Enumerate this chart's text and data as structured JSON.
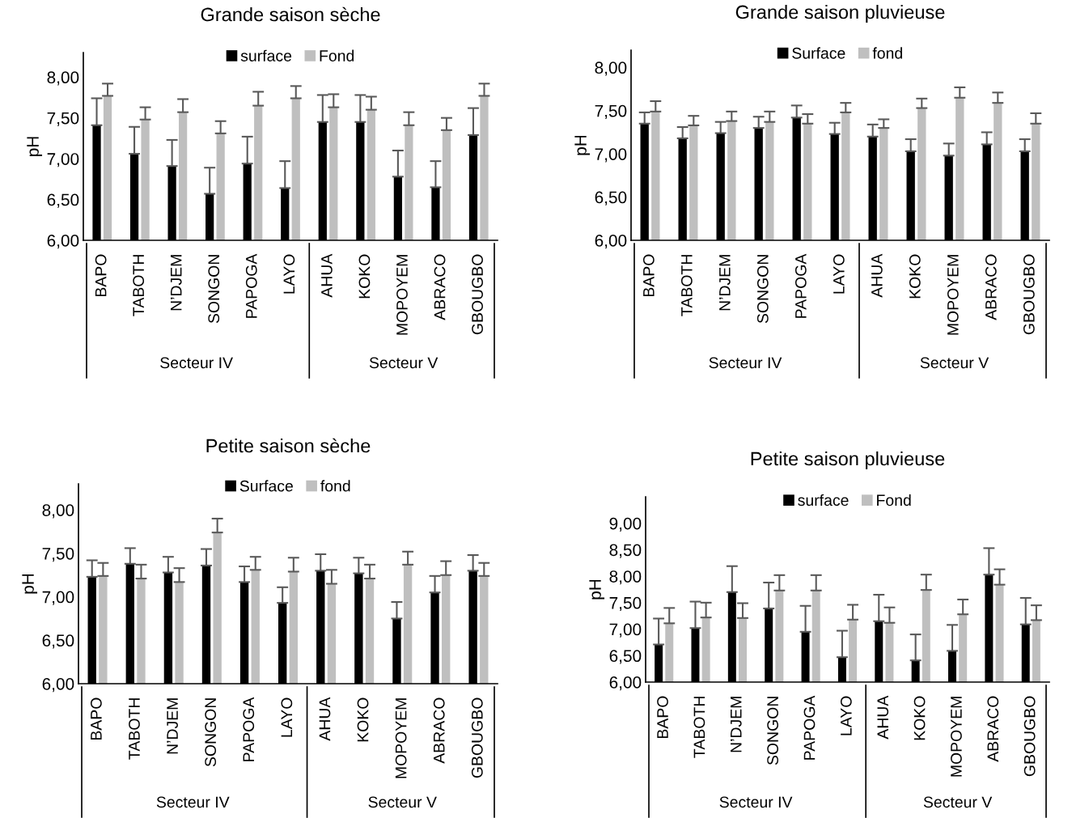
{
  "chart_data": [
    {
      "type": "bar",
      "title": "Grande saison sèche",
      "ylabel": "pH",
      "categories": [
        "BAPO",
        "TABOTH",
        "N’DJEM",
        "SONGON",
        "PAPOGA",
        "LAYO",
        "AHUA",
        "KOKO",
        "MOPOYEM",
        "ABRACO",
        "GBOUGBO"
      ],
      "series": [
        {
          "name": "surface",
          "color": "#000000",
          "values": [
            7.41,
            7.06,
            6.91,
            6.57,
            6.94,
            6.64,
            7.45,
            7.45,
            6.78,
            6.65,
            7.29
          ],
          "errors": [
            [
              7.41,
              7.74
            ],
            [
              7.06,
              7.39
            ],
            [
              6.91,
              7.23
            ],
            [
              6.57,
              6.89
            ],
            [
              6.94,
              7.27
            ],
            [
              6.64,
              6.97
            ],
            [
              7.45,
              7.78
            ],
            [
              7.45,
              7.78
            ],
            [
              6.78,
              7.1
            ],
            [
              6.65,
              6.97
            ],
            [
              7.29,
              7.62
            ]
          ]
        },
        {
          "name": "Fond",
          "color": "#bfbfbf",
          "values": [
            7.77,
            7.48,
            7.57,
            7.31,
            7.65,
            7.74,
            7.63,
            7.6,
            7.41,
            7.35,
            7.77
          ],
          "errors": [
            [
              7.77,
              7.92
            ],
            [
              7.48,
              7.63
            ],
            [
              7.57,
              7.73
            ],
            [
              7.31,
              7.46
            ],
            [
              7.65,
              7.82
            ],
            [
              7.74,
              7.89
            ],
            [
              7.63,
              7.79
            ],
            [
              7.6,
              7.76
            ],
            [
              7.41,
              7.57
            ],
            [
              7.35,
              7.5
            ],
            [
              7.77,
              7.92
            ]
          ]
        }
      ],
      "ylim": [
        6,
        8.3
      ],
      "yticks": [
        {
          "value": 6,
          "label": "6,00"
        },
        {
          "value": 6.5,
          "label": "6,50"
        },
        {
          "value": 7,
          "label": "7,00"
        },
        {
          "value": 7.5,
          "label": "7,50"
        },
        {
          "value": 8,
          "label": "8,00"
        }
      ],
      "legend": "top",
      "grid": false,
      "annotations": [
        "Secteur IV",
        "Secteur V"
      ]
    },
    {
      "type": "bar",
      "title": "Grande saison pluvieuse",
      "ylabel": "pH",
      "categories": [
        "BAPO",
        "TABOTH",
        "N’DJEM",
        "SONGON",
        "PAPOGA",
        "LAYO",
        "AHUA",
        "KOKO",
        "MOPOYEM",
        "ABRACO",
        "GBOUGBO"
      ],
      "series": [
        {
          "name": "Surface",
          "color": "#000000",
          "values": [
            7.35,
            7.18,
            7.24,
            7.3,
            7.42,
            7.23,
            7.2,
            7.03,
            6.98,
            7.11,
            7.03
          ],
          "errors": [
            [
              7.35,
              7.48
            ],
            [
              7.18,
              7.31
            ],
            [
              7.24,
              7.37
            ],
            [
              7.3,
              7.43
            ],
            [
              7.42,
              7.56
            ],
            [
              7.23,
              7.36
            ],
            [
              7.2,
              7.34
            ],
            [
              7.03,
              7.17
            ],
            [
              6.98,
              7.12
            ],
            [
              7.11,
              7.25
            ],
            [
              7.03,
              7.17
            ]
          ]
        },
        {
          "name": "fond",
          "color": "#bfbfbf",
          "values": [
            7.49,
            7.33,
            7.38,
            7.37,
            7.35,
            7.48,
            7.3,
            7.53,
            7.65,
            7.59,
            7.35
          ],
          "errors": [
            [
              7.49,
              7.61
            ],
            [
              7.33,
              7.44
            ],
            [
              7.38,
              7.49
            ],
            [
              7.37,
              7.49
            ],
            [
              7.35,
              7.46
            ],
            [
              7.48,
              7.59
            ],
            [
              7.3,
              7.4
            ],
            [
              7.53,
              7.64
            ],
            [
              7.65,
              7.77
            ],
            [
              7.59,
              7.71
            ],
            [
              7.35,
              7.47
            ]
          ]
        }
      ],
      "ylim": [
        6,
        8.2
      ],
      "yticks": [
        {
          "value": 6,
          "label": "6,00"
        },
        {
          "value": 6.5,
          "label": "6,50"
        },
        {
          "value": 7,
          "label": "7,00"
        },
        {
          "value": 7.5,
          "label": "7,50"
        },
        {
          "value": 8,
          "label": "8,00"
        }
      ],
      "legend": "top",
      "grid": false,
      "annotations": [
        "Secteur IV",
        "Secteur V"
      ]
    },
    {
      "type": "bar",
      "title": "Petite saison sèche",
      "ylabel": "pH",
      "categories": [
        "BAPO",
        "TABOTH",
        "N’DJEM",
        "SONGON",
        "PAPOGA",
        "LAYO",
        "AHUA",
        "KOKO",
        "MOPOYEM",
        "ABRACO",
        "GBOUGBO"
      ],
      "series": [
        {
          "name": "Surface",
          "color": "#000000",
          "values": [
            7.23,
            7.38,
            7.28,
            7.36,
            7.17,
            6.93,
            7.3,
            7.27,
            6.75,
            7.05,
            7.3
          ],
          "errors": [
            [
              7.23,
              7.42
            ],
            [
              7.38,
              7.56
            ],
            [
              7.28,
              7.46
            ],
            [
              7.36,
              7.55
            ],
            [
              7.17,
              7.35
            ],
            [
              6.93,
              7.11
            ],
            [
              7.3,
              7.49
            ],
            [
              7.27,
              7.45
            ],
            [
              6.75,
              6.94
            ],
            [
              7.05,
              7.24
            ],
            [
              7.3,
              7.48
            ]
          ]
        },
        {
          "name": "fond",
          "color": "#bfbfbf",
          "values": [
            7.24,
            7.21,
            7.17,
            7.74,
            7.31,
            7.29,
            7.15,
            7.21,
            7.37,
            7.25,
            7.24
          ],
          "errors": [
            [
              7.24,
              7.39
            ],
            [
              7.21,
              7.37
            ],
            [
              7.17,
              7.33
            ],
            [
              7.74,
              7.9
            ],
            [
              7.31,
              7.46
            ],
            [
              7.29,
              7.45
            ],
            [
              7.15,
              7.31
            ],
            [
              7.21,
              7.37
            ],
            [
              7.37,
              7.52
            ],
            [
              7.25,
              7.41
            ],
            [
              7.24,
              7.39
            ]
          ]
        }
      ],
      "ylim": [
        6,
        8.3
      ],
      "yticks": [
        {
          "value": 6,
          "label": "6,00"
        },
        {
          "value": 6.5,
          "label": "6,50"
        },
        {
          "value": 7,
          "label": "7,00"
        },
        {
          "value": 7.5,
          "label": "7,50"
        },
        {
          "value": 8,
          "label": "8,00"
        }
      ],
      "legend": "top",
      "grid": false,
      "annotations": [
        "Secteur IV",
        "Secteur V"
      ]
    },
    {
      "type": "bar",
      "title": "Petite saison pluvieuse",
      "ylabel": "pH",
      "categories": [
        "BAPO",
        "TABOTH",
        "N’DJEM",
        "SONGON",
        "PAPOGA",
        "LAYO",
        "AHUA",
        "KOKO",
        "MOPOYEM",
        "ABRACO",
        "GBOUGBO"
      ],
      "series": [
        {
          "name": "surface",
          "color": "#000000",
          "values": [
            6.71,
            7.02,
            7.7,
            7.39,
            6.95,
            6.47,
            7.15,
            6.41,
            6.59,
            8.03,
            7.09
          ],
          "errors": [
            [
              6.71,
              7.2
            ],
            [
              7.02,
              7.52
            ],
            [
              7.7,
              8.19
            ],
            [
              7.39,
              7.88
            ],
            [
              6.95,
              7.44
            ],
            [
              6.47,
              6.97
            ],
            [
              7.15,
              7.65
            ],
            [
              6.41,
              6.9
            ],
            [
              6.59,
              7.08
            ],
            [
              8.03,
              8.53
            ],
            [
              7.09,
              7.59
            ]
          ]
        },
        {
          "name": "Fond",
          "color": "#bfbfbf",
          "values": [
            7.11,
            7.22,
            7.21,
            7.73,
            7.73,
            7.18,
            7.12,
            7.74,
            7.28,
            7.84,
            7.17
          ],
          "errors": [
            [
              7.11,
              7.4
            ],
            [
              7.22,
              7.5
            ],
            [
              7.21,
              7.49
            ],
            [
              7.73,
              8.02
            ],
            [
              7.73,
              8.02
            ],
            [
              7.18,
              7.46
            ],
            [
              7.12,
              7.41
            ],
            [
              7.74,
              8.03
            ],
            [
              7.28,
              7.56
            ],
            [
              7.84,
              8.13
            ],
            [
              7.17,
              7.45
            ]
          ]
        }
      ],
      "ylim": [
        6,
        9.5
      ],
      "yticks": [
        {
          "value": 6,
          "label": "6,00"
        },
        {
          "value": 6.5,
          "label": "6,50"
        },
        {
          "value": 7,
          "label": "7,00"
        },
        {
          "value": 7.5,
          "label": "7,50"
        },
        {
          "value": 8,
          "label": "8,00"
        },
        {
          "value": 8.5,
          "label": "8,50"
        },
        {
          "value": 9,
          "label": "9,00"
        }
      ],
      "legend": "top",
      "grid": false,
      "annotations": [
        "Secteur IV",
        "Secteur V"
      ]
    }
  ]
}
